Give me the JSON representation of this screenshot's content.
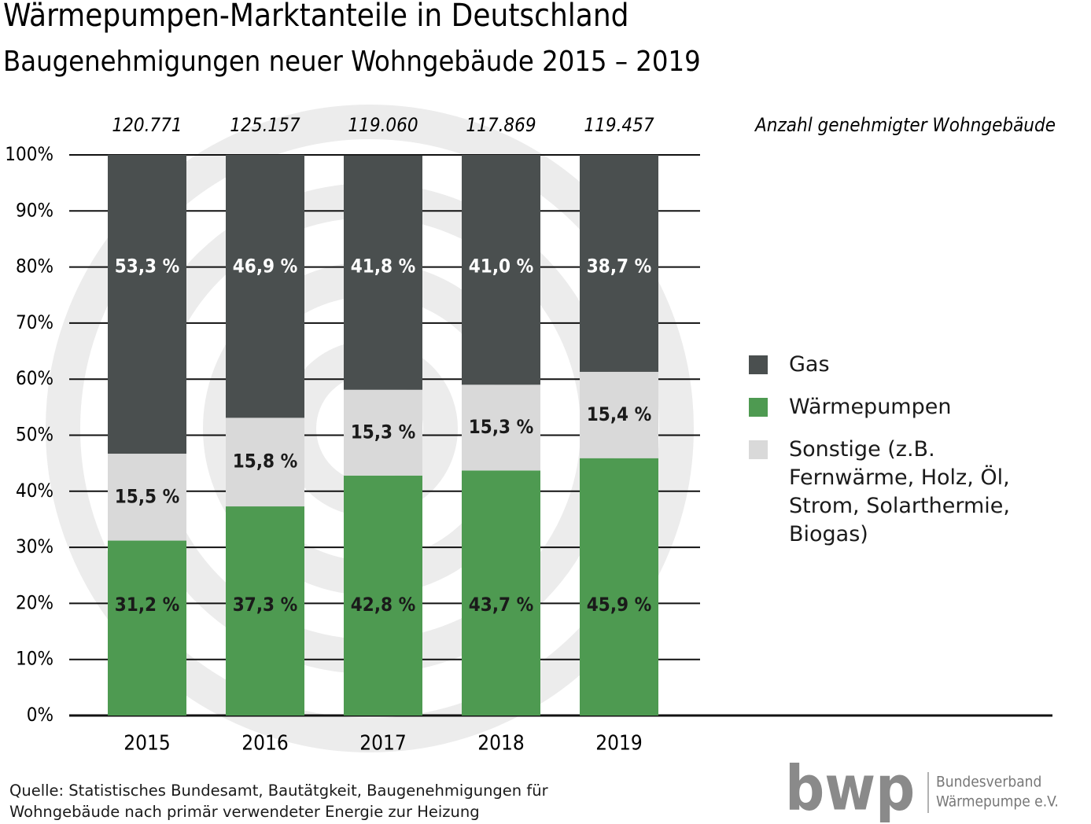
{
  "chart_data": {
    "type": "stacked_bar",
    "title": "Wärmepumpen-Marktanteile in Deutschland",
    "subtitle": "Baugenehmigungen neuer Wohngebäude 2015 – 2019",
    "categories": [
      "2015",
      "2016",
      "2017",
      "2018",
      "2019"
    ],
    "series": [
      {
        "name": "Wärmepumpen",
        "color": "#4e9a51",
        "values": [
          31.2,
          37.3,
          42.8,
          43.7,
          45.9
        ],
        "value_labels": [
          "31,2 %",
          "37,3 %",
          "42,8 %",
          "43,7 %",
          "45,9 %"
        ]
      },
      {
        "name": "Sonstige (z.B. Fernwärme, Holz, Öl, Strom, Solarthermie, Biogas)",
        "color": "#d9d9d9",
        "values": [
          15.5,
          15.8,
          15.3,
          15.3,
          15.4
        ],
        "value_labels": [
          "15,5 %",
          "15,8 %",
          "15,3 %",
          "15,3 %",
          "15,4 %"
        ]
      },
      {
        "name": "Gas",
        "color": "#4a4f4f",
        "values": [
          53.3,
          46.9,
          41.8,
          41.0,
          38.7
        ],
        "value_labels": [
          "53,3 %",
          "46,9 %",
          "41,8 %",
          "41,0 %",
          "38,7 %"
        ]
      }
    ],
    "totals": {
      "label": "Anzahl genehmigter Wohngebäude",
      "values": [
        120771,
        125157,
        119060,
        117869,
        119457
      ],
      "value_labels": [
        "120.771",
        "125.157",
        "119.060",
        "117.869",
        "119.457"
      ]
    },
    "ylim": [
      0,
      100
    ],
    "yticks": [
      {
        "value": 0,
        "label": "0%"
      },
      {
        "value": 10,
        "label": "10%"
      },
      {
        "value": 20,
        "label": "20%"
      },
      {
        "value": 30,
        "label": "30%"
      },
      {
        "value": 40,
        "label": "40%"
      },
      {
        "value": 50,
        "label": "50%"
      },
      {
        "value": 60,
        "label": "60%"
      },
      {
        "value": 70,
        "label": "70%"
      },
      {
        "value": 80,
        "label": "80%"
      },
      {
        "value": 90,
        "label": "90%"
      },
      {
        "value": 100,
        "label": "100%"
      }
    ],
    "grid": true,
    "source": "Quelle: Statistisches Bundesamt, Bautätgkeit, Baugenehmigungen für Wohngebäude nach primär verwendeter Energie zur Heizung",
    "logo": {
      "text": "bwp",
      "org_line1": "Bundesverband",
      "org_line2": "Wärmepumpe e.V."
    }
  }
}
